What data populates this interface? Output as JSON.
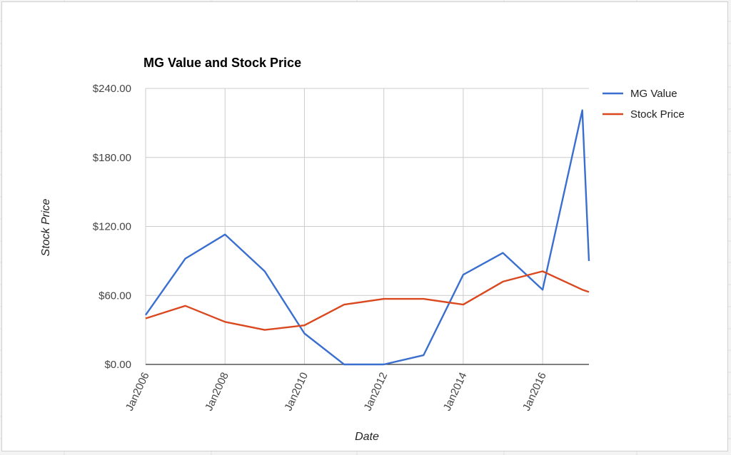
{
  "chart_data": {
    "type": "line",
    "title": "MG Value and Stock Price",
    "xlabel": "Date",
    "ylabel": "Stock Price",
    "ylim": [
      0,
      240
    ],
    "y_ticks": [
      "$0.00",
      "$60.00",
      "$120.00",
      "$180.00",
      "$240.00"
    ],
    "x_ticks": [
      "Jan2006",
      "Jan2008",
      "Jan2010",
      "Jan2012",
      "Jan2014",
      "Jan2016"
    ],
    "x_range": [
      "2006-01",
      "2017-03"
    ],
    "grid": true,
    "legend_position": "right",
    "series": [
      {
        "name": "MG Value",
        "color": "#3a6fcf",
        "points": [
          {
            "x": "2006-01",
            "y": 43
          },
          {
            "x": "2007-01",
            "y": 92
          },
          {
            "x": "2008-01",
            "y": 113
          },
          {
            "x": "2009-01",
            "y": 81
          },
          {
            "x": "2010-01",
            "y": 27
          },
          {
            "x": "2011-01",
            "y": 0
          },
          {
            "x": "2012-01",
            "y": 0
          },
          {
            "x": "2013-01",
            "y": 8
          },
          {
            "x": "2014-01",
            "y": 78
          },
          {
            "x": "2015-01",
            "y": 97
          },
          {
            "x": "2016-01",
            "y": 65
          },
          {
            "x": "2017-01",
            "y": 221
          },
          {
            "x": "2017-03",
            "y": 90
          }
        ]
      },
      {
        "name": "Stock Price",
        "color": "#d9481f",
        "points": [
          {
            "x": "2006-01",
            "y": 40
          },
          {
            "x": "2007-01",
            "y": 51
          },
          {
            "x": "2008-01",
            "y": 37
          },
          {
            "x": "2009-01",
            "y": 30
          },
          {
            "x": "2010-01",
            "y": 34
          },
          {
            "x": "2011-01",
            "y": 52
          },
          {
            "x": "2012-01",
            "y": 57
          },
          {
            "x": "2013-01",
            "y": 57
          },
          {
            "x": "2014-01",
            "y": 52
          },
          {
            "x": "2015-01",
            "y": 72
          },
          {
            "x": "2016-01",
            "y": 81
          },
          {
            "x": "2017-01",
            "y": 65
          },
          {
            "x": "2017-03",
            "y": 63
          }
        ]
      }
    ]
  }
}
